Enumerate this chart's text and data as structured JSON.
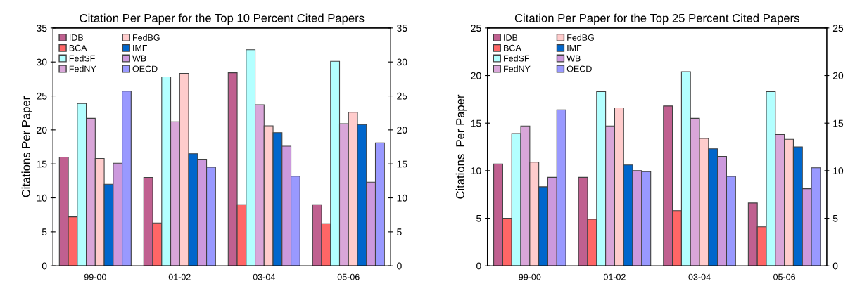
{
  "chart_data": [
    {
      "type": "bar",
      "title": "Citation Per Paper for the Top 10 Percent Cited Papers",
      "ylabel": "Citations Per Paper",
      "categories": [
        "99-00",
        "01-02",
        "03-04",
        "05-06"
      ],
      "series": [
        {
          "name": "IDB",
          "color": "#c06090",
          "values": [
            16.0,
            13.0,
            28.4,
            9.0
          ]
        },
        {
          "name": "BCA",
          "color": "#ff6666",
          "values": [
            7.2,
            6.3,
            9.0,
            6.2
          ]
        },
        {
          "name": "FedSF",
          "color": "#b3ffff",
          "values": [
            23.9,
            27.8,
            31.8,
            30.1
          ]
        },
        {
          "name": "FedNY",
          "color": "#d9a6d9",
          "values": [
            21.7,
            21.2,
            23.7,
            20.9
          ]
        },
        {
          "name": "FedBG",
          "color": "#ffcccc",
          "values": [
            15.8,
            28.3,
            20.6,
            22.6
          ]
        },
        {
          "name": "IMF",
          "color": "#0066cc",
          "values": [
            12.0,
            16.5,
            19.6,
            20.8
          ]
        },
        {
          "name": "WB",
          "color": "#cc99dd",
          "values": [
            15.1,
            15.7,
            17.6,
            12.3
          ]
        },
        {
          "name": "OECD",
          "color": "#9999ff",
          "values": [
            25.7,
            14.5,
            13.2,
            18.1
          ]
        }
      ],
      "ylim": [
        0,
        35
      ],
      "yticks": [
        0,
        5,
        10,
        15,
        20,
        25,
        30,
        35
      ],
      "y2lim": [
        0,
        35
      ],
      "y2ticks": [
        0,
        5,
        10,
        15,
        20,
        25,
        30,
        35
      ],
      "grid": false,
      "legend": "top left"
    },
    {
      "type": "bar",
      "title": "Citation Per Paper for the Top 25 Percent Cited Papers",
      "ylabel": "Citations  Per Paper",
      "categories": [
        "99-00",
        "01-02",
        "03-04",
        "05-06"
      ],
      "series": [
        {
          "name": "IDB",
          "color": "#c06090",
          "values": [
            10.7,
            9.3,
            16.8,
            6.6
          ]
        },
        {
          "name": "BCA",
          "color": "#ff6666",
          "values": [
            5.0,
            4.9,
            5.8,
            4.1
          ]
        },
        {
          "name": "FedSF",
          "color": "#b3ffff",
          "values": [
            13.9,
            18.3,
            20.4,
            18.3
          ]
        },
        {
          "name": "FedNY",
          "color": "#d9a6d9",
          "values": [
            14.7,
            14.7,
            15.5,
            13.8
          ]
        },
        {
          "name": "FedBG",
          "color": "#ffcccc",
          "values": [
            10.9,
            16.6,
            13.4,
            13.3
          ]
        },
        {
          "name": "IMF",
          "color": "#0066cc",
          "values": [
            8.3,
            10.6,
            12.3,
            12.5
          ]
        },
        {
          "name": "WB",
          "color": "#cc99dd",
          "values": [
            9.3,
            10.0,
            11.5,
            8.1
          ]
        },
        {
          "name": "OECD",
          "color": "#9999ff",
          "values": [
            16.4,
            9.9,
            9.4,
            10.3
          ]
        }
      ],
      "ylim": [
        0,
        25
      ],
      "yticks": [
        0,
        5,
        10,
        15,
        20,
        25
      ],
      "y2lim": [
        0,
        25
      ],
      "y2ticks": [
        0,
        5,
        10,
        15,
        20,
        25
      ],
      "grid": false,
      "legend": "top left"
    }
  ]
}
